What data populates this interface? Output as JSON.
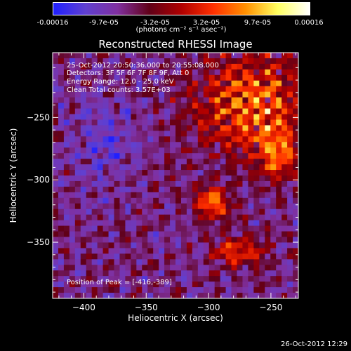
{
  "colorbar": {
    "ticks": [
      "-0.00016",
      "-9.7e-05",
      "-3.2e-05",
      "3.2e-05",
      "9.7e-05",
      "0.00016"
    ],
    "units": "(photons cm⁻² s⁻¹ asec⁻²)",
    "colors": [
      "#2020ff",
      "#6040d0",
      "#8030a0",
      "#600018",
      "#b00000",
      "#ff3000",
      "#ff9000",
      "#ffff60",
      "#ffffff"
    ]
  },
  "chart_data": {
    "type": "heatmap",
    "title": "Reconstructed RHESSI Image",
    "xlabel": "Heliocentric X (arcsec)",
    "ylabel": "Heliocentric Y (arcsec)",
    "xlim": [
      -425,
      -228
    ],
    "ylim": [
      -395,
      -198
    ],
    "xticks": [
      -400,
      -350,
      -300,
      -250
    ],
    "yticks": [
      -250,
      -300,
      -350
    ],
    "xtick_labels": [
      "−400",
      "−350",
      "−300",
      "−250"
    ],
    "ytick_labels": [
      "−250",
      "−300",
      "−350"
    ],
    "annotations": [
      "25-Oct-2012 20:50:36.000 to 20:55:08.000",
      "Detectors: 3F 5F 6F 7F 8F 9F, Att 0",
      "Energy Range: 12.0 - 25.0 keV",
      "Clean    Total counts: 3.57E+03"
    ],
    "peak_label": "Position of Peak = [-416,-389]",
    "peak_position": [
      -416,
      -389
    ]
  },
  "footer": {
    "date": "26-Oct-2012 12:29"
  }
}
